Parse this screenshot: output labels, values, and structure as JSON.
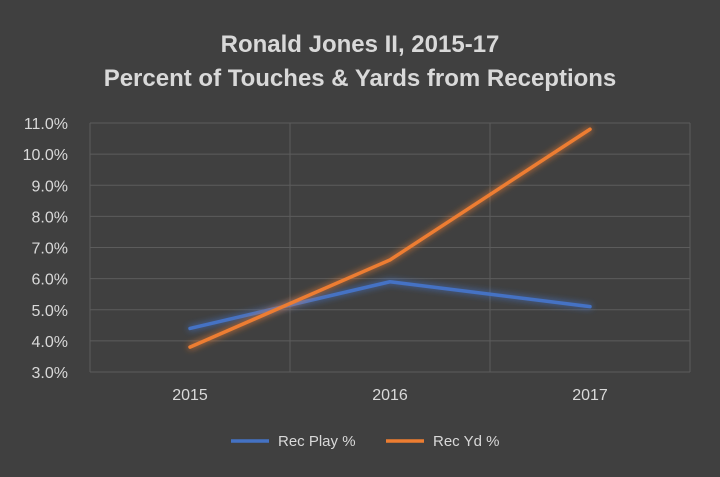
{
  "chart_data": {
    "type": "line",
    "title": "Ronald Jones II, 2015-17",
    "subtitle": "Percent of Touches & Yards from Receptions",
    "categories": [
      "2015",
      "2016",
      "2017"
    ],
    "series": [
      {
        "name": "Rec Play %",
        "values": [
          4.4,
          5.9,
          5.1
        ],
        "color": "#4472c4"
      },
      {
        "name": "Rec Yd %",
        "values": [
          3.8,
          6.6,
          10.8
        ],
        "color": "#ed7d31"
      }
    ],
    "ylim": [
      3.0,
      11.0
    ],
    "yticks": [
      "11.0%",
      "10.0%",
      "9.0%",
      "8.0%",
      "7.0%",
      "6.0%",
      "5.0%",
      "4.0%",
      "3.0%"
    ],
    "ytick_values": [
      11,
      10,
      9,
      8,
      7,
      6,
      5,
      4,
      3
    ],
    "xlabel": "",
    "ylabel": "",
    "grid": true,
    "legend": "bottom"
  }
}
